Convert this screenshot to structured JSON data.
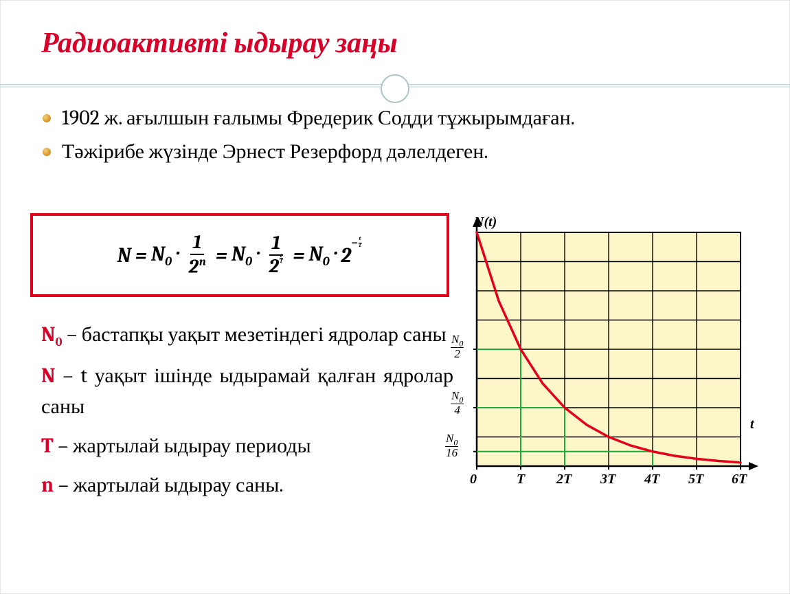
{
  "title": "Радиоактивті ыдырау заңы",
  "bullets": [
    "1902 ж. ағылшын ғалымы Фредерик Содди тұжырымдаған.",
    "Тәжірибе жүзінде Эрнест Резерфорд дәлелдеген."
  ],
  "formula": {
    "border_color": "#e3001b",
    "lhs_var": "N",
    "n0": "N",
    "sub0": "0",
    "eq": "=",
    "dot": "·",
    "frac1_num": "1",
    "frac1_den_base": "2",
    "frac1_den_exp": "n",
    "frac2_num": "1",
    "frac2_den_base": "2",
    "frac2_den_exp_num": "t",
    "frac2_den_exp_den": "T",
    "final_base": "2",
    "final_exp_minus": "−",
    "final_exp_num": "t",
    "final_exp_den": "T"
  },
  "definitions": [
    {
      "term_html": "N<sub>0</sub>",
      "term": "N",
      "term_sub": "0",
      "text": " – бастапқы уақыт мезетіндегі ядролар саны"
    },
    {
      "term": "N",
      "term_sub": "",
      "text": " – t уақыт ішінде ыдырамай қалған ядролар саны"
    },
    {
      "term": "T",
      "term_sub": "",
      "text": " – жартылай ыдырау периоды"
    },
    {
      "term": "n",
      "term_sub": "",
      "text": " – жартылай ыдырау саны."
    }
  ],
  "chart": {
    "type": "line",
    "y_axis_label": "N(t)",
    "x_axis_label": "t",
    "plot_bg": "#fdf6c9",
    "grid_color": "#000000",
    "curve_color": "#e3001b",
    "guide_color": "#1faa3a",
    "curve_width": 3.5,
    "x_ticks": [
      "0",
      "T",
      "2T",
      "3T",
      "4T",
      "5T",
      "6T"
    ],
    "y_ticks": [
      {
        "label_num": "N₀",
        "label_den": "2",
        "frac": 0.5
      },
      {
        "label_num": "N₀",
        "label_den": "4",
        "frac": 0.25
      },
      {
        "label_num": "N₀",
        "label_den": "16",
        "frac": 0.0625
      }
    ],
    "y_n0_label_num": "N",
    "y_n0_label_sub": "0",
    "xlim": [
      0,
      6
    ],
    "ylim": [
      0,
      1
    ],
    "grid_rows": 8,
    "grid_cols": 6,
    "curve_points": [
      {
        "t": 0,
        "y": 1
      },
      {
        "t": 0.5,
        "y": 0.7071
      },
      {
        "t": 1,
        "y": 0.5
      },
      {
        "t": 1.5,
        "y": 0.3536
      },
      {
        "t": 2,
        "y": 0.25
      },
      {
        "t": 2.5,
        "y": 0.1768
      },
      {
        "t": 3,
        "y": 0.125
      },
      {
        "t": 3.5,
        "y": 0.0884
      },
      {
        "t": 4,
        "y": 0.0625
      },
      {
        "t": 4.5,
        "y": 0.0442
      },
      {
        "t": 5,
        "y": 0.03125
      },
      {
        "t": 5.5,
        "y": 0.0221
      },
      {
        "t": 6,
        "y": 0.0156
      }
    ]
  },
  "colors": {
    "title": "#d9002a",
    "term": "#d9002a",
    "text": "#000000",
    "bullet_marker": "#d89a2b",
    "rule": "#b0c4c6"
  }
}
